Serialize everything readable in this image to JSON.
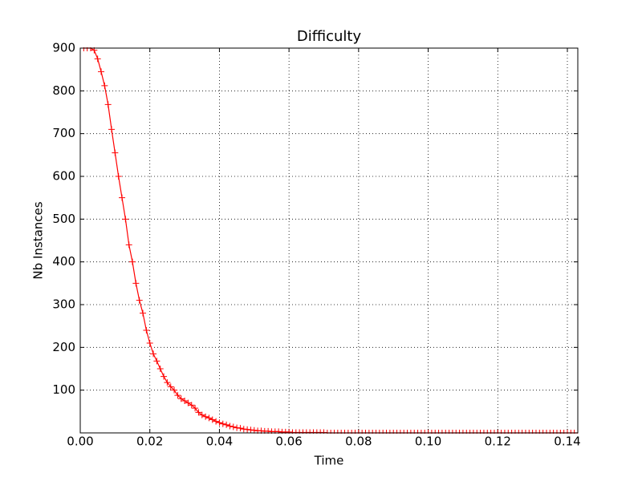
{
  "chart_data": {
    "type": "line",
    "title": "Difficulty",
    "xlabel": "Time",
    "ylabel": "Nb Instances",
    "x": [
      0.001,
      0.002,
      0.003,
      0.004,
      0.005,
      0.006,
      0.007,
      0.008,
      0.009,
      0.01,
      0.011,
      0.012,
      0.013,
      0.014,
      0.015,
      0.016,
      0.017,
      0.018,
      0.019,
      0.02,
      0.021,
      0.022,
      0.023,
      0.024,
      0.025,
      0.026,
      0.027,
      0.028,
      0.029,
      0.03,
      0.031,
      0.032,
      0.033,
      0.034,
      0.035,
      0.036,
      0.037,
      0.038,
      0.039,
      0.04,
      0.041,
      0.042,
      0.043,
      0.044,
      0.045,
      0.046,
      0.047,
      0.048,
      0.049,
      0.05,
      0.051,
      0.052,
      0.053,
      0.054,
      0.055,
      0.056,
      0.057,
      0.058,
      0.059,
      0.06,
      0.061,
      0.062,
      0.063,
      0.064,
      0.065,
      0.066,
      0.067,
      0.068,
      0.069,
      0.07,
      0.071,
      0.072,
      0.073,
      0.074,
      0.075,
      0.076,
      0.077,
      0.078,
      0.079,
      0.08,
      0.081,
      0.082,
      0.083,
      0.084,
      0.085,
      0.086,
      0.087,
      0.088,
      0.089,
      0.09,
      0.091,
      0.092,
      0.093,
      0.094,
      0.095,
      0.096,
      0.097,
      0.098,
      0.099,
      0.1,
      0.101,
      0.102,
      0.103,
      0.104,
      0.105,
      0.106,
      0.107,
      0.108,
      0.109,
      0.11,
      0.111,
      0.112,
      0.113,
      0.114,
      0.115,
      0.116,
      0.117,
      0.118,
      0.119,
      0.12,
      0.121,
      0.122,
      0.123,
      0.124,
      0.125,
      0.126,
      0.127,
      0.128,
      0.129,
      0.13,
      0.131,
      0.132,
      0.133,
      0.134,
      0.135,
      0.136,
      0.137,
      0.138,
      0.139,
      0.14,
      0.141,
      0.142,
      0.143
    ],
    "series": [
      {
        "name": "Difficulty",
        "color": "#ff0000",
        "values": [
          900,
          900,
          900,
          895,
          875,
          845,
          812,
          768,
          710,
          655,
          600,
          550,
          500,
          440,
          400,
          350,
          310,
          280,
          240,
          210,
          185,
          168,
          150,
          132,
          118,
          108,
          100,
          88,
          80,
          75,
          70,
          65,
          58,
          48,
          42,
          38,
          35,
          31,
          27,
          24,
          21,
          19,
          16,
          14,
          12,
          11,
          9,
          8,
          7,
          6,
          5,
          5,
          4,
          4,
          3,
          3,
          3,
          2,
          2,
          2,
          1,
          1,
          1,
          1,
          1,
          1,
          1,
          1,
          1,
          1,
          0,
          0,
          0,
          0,
          0,
          0,
          0,
          0,
          0,
          0,
          0,
          0,
          0,
          0,
          0,
          0,
          0,
          0,
          0,
          0,
          0,
          0,
          0,
          0,
          0,
          0,
          0,
          0,
          0,
          0,
          0,
          0,
          0,
          0,
          0,
          0,
          0,
          0,
          0,
          0,
          0,
          0,
          0,
          0,
          0,
          0,
          0,
          0,
          0,
          0,
          0,
          0,
          0,
          0,
          0,
          0,
          0,
          0,
          0,
          0,
          0,
          0,
          0,
          0,
          0,
          0,
          0,
          0,
          0,
          0,
          0,
          0,
          0
        ]
      }
    ],
    "xlim": [
      0,
      0.143
    ],
    "ylim": [
      0,
      900
    ],
    "xticks": [
      {
        "value": 0,
        "label": "0.00"
      },
      {
        "value": 0.02,
        "label": "0.02"
      },
      {
        "value": 0.04,
        "label": "0.04"
      },
      {
        "value": 0.06,
        "label": "0.06"
      },
      {
        "value": 0.08,
        "label": "0.08"
      },
      {
        "value": 0.1,
        "label": "0.10"
      },
      {
        "value": 0.12,
        "label": "0.12"
      },
      {
        "value": 0.14,
        "label": "0.14"
      }
    ],
    "yticks": [
      100,
      200,
      300,
      400,
      500,
      600,
      700,
      800,
      900
    ],
    "grid": true
  }
}
